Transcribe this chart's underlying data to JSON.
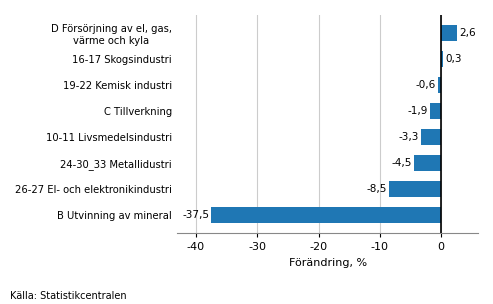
{
  "categories": [
    "B Utvinning av mineral",
    "26-27 El- och elektronikindustri",
    "24-30_33 Metallidustri",
    "10-11 Livsmedelsindustri",
    "C Tillverkning",
    "19-22 Kemisk industri",
    "16-17 Skogsindustri",
    "D Försörjning av el, gas,\nvärme och kyla"
  ],
  "values": [
    -37.5,
    -8.5,
    -4.5,
    -3.3,
    -1.9,
    -0.6,
    0.3,
    2.6
  ],
  "bar_color": "#1F77B4",
  "xlabel": "Förändring, %",
  "xlim": [
    -43,
    6
  ],
  "xticks": [
    -40,
    -30,
    -20,
    -10,
    0
  ],
  "source_text": "Källa: Statistikcentralen",
  "value_labels": [
    "-37,5",
    "-8,5",
    "-4,5",
    "-3,3",
    "-1,9",
    "-0,6",
    "0,3",
    "2,6"
  ]
}
